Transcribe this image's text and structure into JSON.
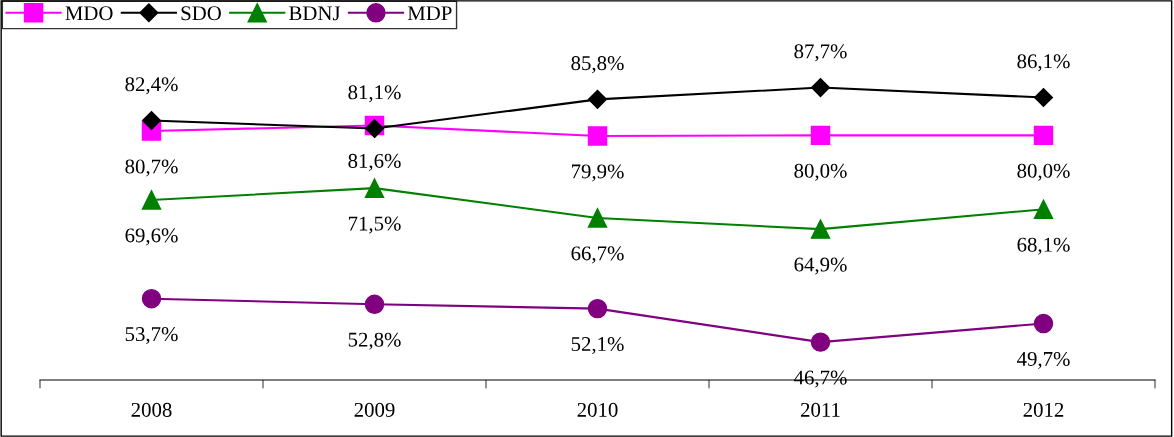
{
  "chart_data": {
    "type": "line",
    "categories": [
      "2008",
      "2009",
      "2010",
      "2011",
      "2012"
    ],
    "ylim": [
      40.6,
      101
    ],
    "tick_labels": "x",
    "legend": "top left",
    "grid": false,
    "series": [
      {
        "name": "MDO",
        "color": "#ff00ff",
        "marker": "square",
        "values": [
          80.7,
          81.6,
          79.9,
          80.0,
          80.0
        ],
        "value_labels": [
          "80,7%",
          "81,6%",
          "79,9%",
          "80,0%",
          "80,0%"
        ]
      },
      {
        "name": "SDO",
        "color": "#000000",
        "marker": "diamond",
        "values": [
          82.4,
          81.1,
          85.8,
          87.7,
          86.1
        ],
        "value_labels": [
          "82,4%",
          "81,1%",
          "85,8%",
          "87,7%",
          "86,1%"
        ]
      },
      {
        "name": "BDNJ",
        "color": "#008000",
        "marker": "triangle",
        "values": [
          69.6,
          71.5,
          66.7,
          64.9,
          68.1
        ],
        "value_labels": [
          "69,6%",
          "71,5%",
          "66,7%",
          "64,9%",
          "68,1%"
        ]
      },
      {
        "name": "MDP",
        "color": "#800080",
        "marker": "circle",
        "values": [
          53.7,
          52.8,
          52.1,
          46.7,
          49.7
        ],
        "value_labels": [
          "53,7%",
          "52,8%",
          "52,1%",
          "46,7%",
          "49,7%"
        ]
      }
    ]
  }
}
